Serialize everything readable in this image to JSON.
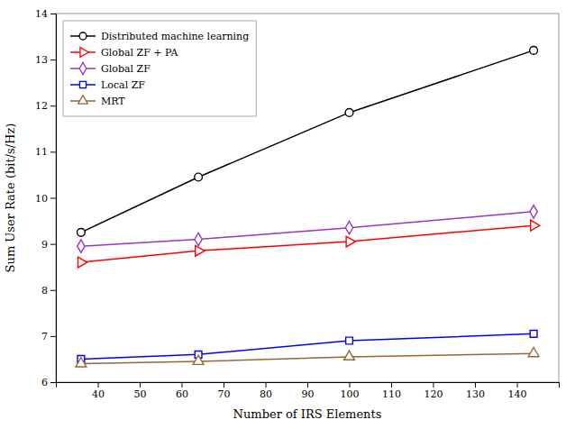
{
  "chart_data": {
    "type": "line",
    "x": [
      36,
      64,
      100,
      144
    ],
    "series": [
      {
        "name": "Distributed machine learning",
        "values": [
          9.25,
          10.45,
          11.85,
          13.2
        ],
        "color": "#000000",
        "marker": "circle"
      },
      {
        "name": "Global ZF + PA",
        "values": [
          8.6,
          8.85,
          9.05,
          9.4
        ],
        "color": "#ff0000",
        "marker": "triangle-right"
      },
      {
        "name": "Global ZF",
        "values": [
          8.95,
          9.1,
          9.35,
          9.7
        ],
        "color": "#9933cc",
        "marker": "diamond"
      },
      {
        "name": "Local ZF",
        "values": [
          6.5,
          6.6,
          6.9,
          7.05
        ],
        "color": "#0000ff",
        "marker": "square"
      },
      {
        "name": "MRT",
        "values": [
          6.4,
          6.45,
          6.55,
          6.62
        ],
        "color": "#996633",
        "marker": "triangle-up"
      }
    ],
    "xlabel": "Number of IRS Elements",
    "ylabel": "Sum User Rate (bit/s/Hz)",
    "xlim": [
      30,
      150
    ],
    "ylim": [
      6,
      14
    ],
    "xticks": [
      40,
      50,
      60,
      70,
      80,
      90,
      100,
      110,
      120,
      130,
      140
    ],
    "yticks": [
      6,
      7,
      8,
      9,
      10,
      11,
      12,
      13,
      14
    ],
    "legend": "upper left",
    "grid": false
  }
}
